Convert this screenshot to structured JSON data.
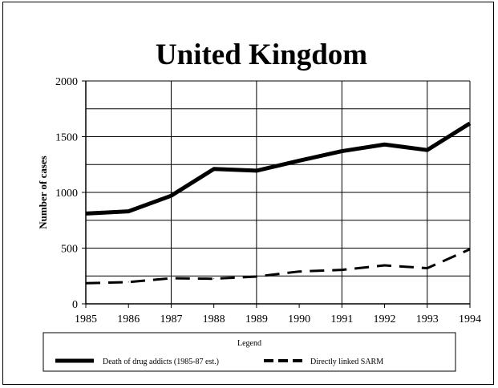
{
  "chart_data": {
    "type": "line",
    "title": "United Kingdom",
    "xlabel": "",
    "ylabel": "Number of cases",
    "x": [
      1985,
      1986,
      1987,
      1988,
      1989,
      1990,
      1991,
      1992,
      1993,
      1994
    ],
    "x_tick_labels": [
      "1985",
      "1986",
      "1987",
      "1988",
      "1989",
      "1990",
      "1991",
      "1992",
      "1993",
      "1994"
    ],
    "y_tick_values": [
      0,
      500,
      1000,
      1500,
      2000
    ],
    "y_tick_labels": [
      "0",
      "500",
      "1000",
      "1500",
      "2000"
    ],
    "ylim": [
      0,
      2000
    ],
    "grid": true,
    "legend_title": "Legend",
    "legend_position": "bottom",
    "series": [
      {
        "name": "Death of drug addicts (1985-87 est.)",
        "style": "solid",
        "color": "#000000",
        "values": [
          810,
          830,
          970,
          1210,
          1195,
          1285,
          1370,
          1430,
          1380,
          1620
        ]
      },
      {
        "name": "Directly linked SARM",
        "style": "dashed",
        "color": "#000000",
        "values": [
          185,
          195,
          230,
          225,
          245,
          290,
          305,
          345,
          320,
          490
        ]
      }
    ]
  }
}
